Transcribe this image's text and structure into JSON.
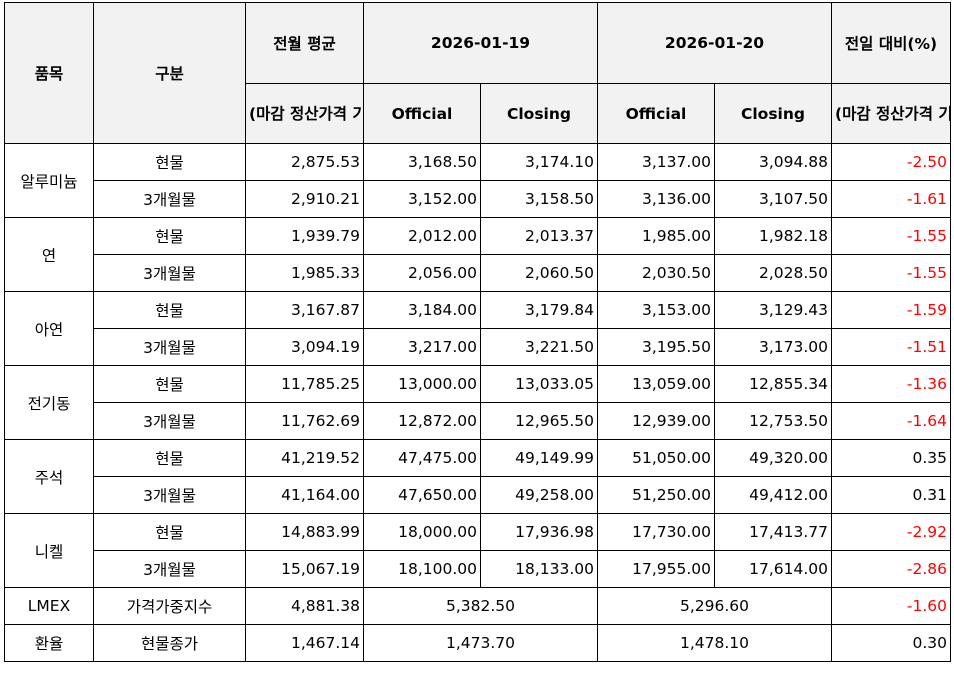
{
  "header": {
    "item": "품목",
    "kind": "구분",
    "prev_month_avg": "전월 평균",
    "prev_month_avg_note": "(마감 정산가격 기준)",
    "date1": "2026-01-19",
    "date2": "2026-01-20",
    "change": "전일 대비(%)",
    "change_note": "(마감 정산가격 기준)",
    "official": "Official",
    "closing": "Closing"
  },
  "groups": [
    {
      "item": "알루미늄",
      "rows": [
        {
          "kind": "현물",
          "avg": "2,875.53",
          "d1_off": "3,168.50",
          "d1_close": "3,174.10",
          "d2_off": "3,137.00",
          "d2_close": "3,094.88",
          "chg": "-2.50",
          "chg_sign": "neg"
        },
        {
          "kind": "3개월물",
          "avg": "2,910.21",
          "d1_off": "3,152.00",
          "d1_close": "3,158.50",
          "d2_off": "3,136.00",
          "d2_close": "3,107.50",
          "chg": "-1.61",
          "chg_sign": "neg"
        }
      ]
    },
    {
      "item": "연",
      "rows": [
        {
          "kind": "현물",
          "avg": "1,939.79",
          "d1_off": "2,012.00",
          "d1_close": "2,013.37",
          "d2_off": "1,985.00",
          "d2_close": "1,982.18",
          "chg": "-1.55",
          "chg_sign": "neg"
        },
        {
          "kind": "3개월물",
          "avg": "1,985.33",
          "d1_off": "2,056.00",
          "d1_close": "2,060.50",
          "d2_off": "2,030.50",
          "d2_close": "2,028.50",
          "chg": "-1.55",
          "chg_sign": "neg"
        }
      ]
    },
    {
      "item": "아연",
      "rows": [
        {
          "kind": "현물",
          "avg": "3,167.87",
          "d1_off": "3,184.00",
          "d1_close": "3,179.84",
          "d2_off": "3,153.00",
          "d2_close": "3,129.43",
          "chg": "-1.59",
          "chg_sign": "neg"
        },
        {
          "kind": "3개월물",
          "avg": "3,094.19",
          "d1_off": "3,217.00",
          "d1_close": "3,221.50",
          "d2_off": "3,195.50",
          "d2_close": "3,173.00",
          "chg": "-1.51",
          "chg_sign": "neg"
        }
      ]
    },
    {
      "item": "전기동",
      "rows": [
        {
          "kind": "현물",
          "avg": "11,785.25",
          "d1_off": "13,000.00",
          "d1_close": "13,033.05",
          "d2_off": "13,059.00",
          "d2_close": "12,855.34",
          "chg": "-1.36",
          "chg_sign": "neg"
        },
        {
          "kind": "3개월물",
          "avg": "11,762.69",
          "d1_off": "12,872.00",
          "d1_close": "12,965.50",
          "d2_off": "12,939.00",
          "d2_close": "12,753.50",
          "chg": "-1.64",
          "chg_sign": "neg"
        }
      ]
    },
    {
      "item": "주석",
      "rows": [
        {
          "kind": "현물",
          "avg": "41,219.52",
          "d1_off": "47,475.00",
          "d1_close": "49,149.99",
          "d2_off": "51,050.00",
          "d2_close": "49,320.00",
          "chg": "0.35",
          "chg_sign": "pos"
        },
        {
          "kind": "3개월물",
          "avg": "41,164.00",
          "d1_off": "47,650.00",
          "d1_close": "49,258.00",
          "d2_off": "51,250.00",
          "d2_close": "49,412.00",
          "chg": "0.31",
          "chg_sign": "pos"
        }
      ]
    },
    {
      "item": "니켈",
      "rows": [
        {
          "kind": "현물",
          "avg": "14,883.99",
          "d1_off": "18,000.00",
          "d1_close": "17,936.98",
          "d2_off": "17,730.00",
          "d2_close": "17,413.77",
          "chg": "-2.92",
          "chg_sign": "neg"
        },
        {
          "kind": "3개월물",
          "avg": "15,067.19",
          "d1_off": "18,100.00",
          "d1_close": "18,133.00",
          "d2_off": "17,955.00",
          "d2_close": "17,614.00",
          "chg": "-2.86",
          "chg_sign": "neg"
        }
      ]
    }
  ],
  "single_rows": [
    {
      "item": "LMEX",
      "kind": "가격가중지수",
      "avg": "4,881.38",
      "d1": "5,382.50",
      "d2": "5,296.60",
      "chg": "-1.60",
      "chg_sign": "neg"
    },
    {
      "item": "환율",
      "kind": "현물종가",
      "avg": "1,467.14",
      "d1": "1,473.70",
      "d2": "1,478.10",
      "chg": "0.30",
      "chg_sign": "pos"
    }
  ],
  "colors": {
    "negative": "#ff0000",
    "positive": "#000000",
    "header_bg": "#f2f2f2"
  }
}
